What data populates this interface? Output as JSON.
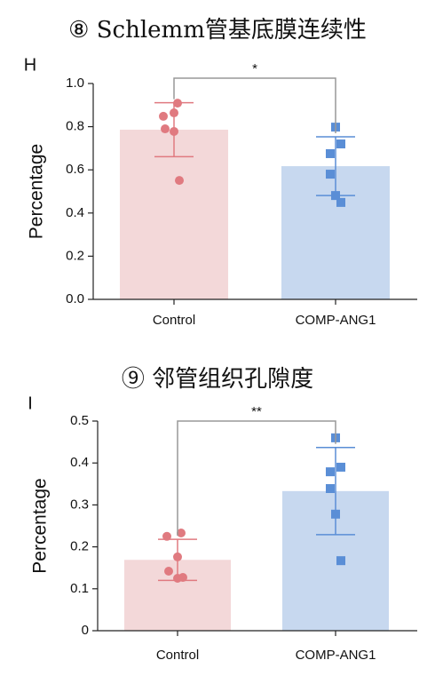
{
  "chart_data": [
    {
      "type": "bar",
      "title": "⑧ Schlemm管基底膜连续性",
      "panel": "H",
      "y_label": "Percentage",
      "categories": [
        "Control",
        "COMP-ANG1"
      ],
      "values": [
        0.786,
        0.617
      ],
      "errors": [
        0.125,
        0.136
      ],
      "points": [
        [
          0.909,
          0.848,
          0.864,
          0.79,
          0.778,
          0.551
        ],
        [
          0.798,
          0.72,
          0.675,
          0.58,
          0.481,
          0.449
        ]
      ],
      "colors": [
        "#f3d8d9",
        "#c7d8ef"
      ],
      "point_colors": [
        "#e07a80",
        "#5a8ed6"
      ],
      "significance": "*",
      "ylim": [
        0,
        1.0
      ],
      "yticks": [
        {
          "value": 0,
          "label": "0.0"
        },
        0.2,
        0.4,
        0.6,
        0.8,
        {
          "value": 1.0,
          "label": "1.0"
        }
      ]
    },
    {
      "type": "bar",
      "title": "⑨ 邻管组织孔隙度",
      "panel": "I",
      "y_label": "Percentage",
      "categories": [
        "Control",
        "COMP-ANG1"
      ],
      "values": [
        0.169,
        0.333
      ],
      "errors": [
        0.049,
        0.104
      ],
      "points": [
        [
          0.233,
          0.225,
          0.176,
          0.142,
          0.125,
          0.127
        ],
        [
          0.46,
          0.39,
          0.379,
          0.339,
          0.278,
          0.167
        ]
      ],
      "colors": [
        "#f3d8d9",
        "#c7d8ef"
      ],
      "point_colors": [
        "#e07a80",
        "#5a8ed6"
      ],
      "significance": "**",
      "ylim": [
        0,
        0.5
      ],
      "yticks": [
        0,
        0.1,
        0.2,
        0.3,
        0.4,
        0.5
      ]
    }
  ]
}
